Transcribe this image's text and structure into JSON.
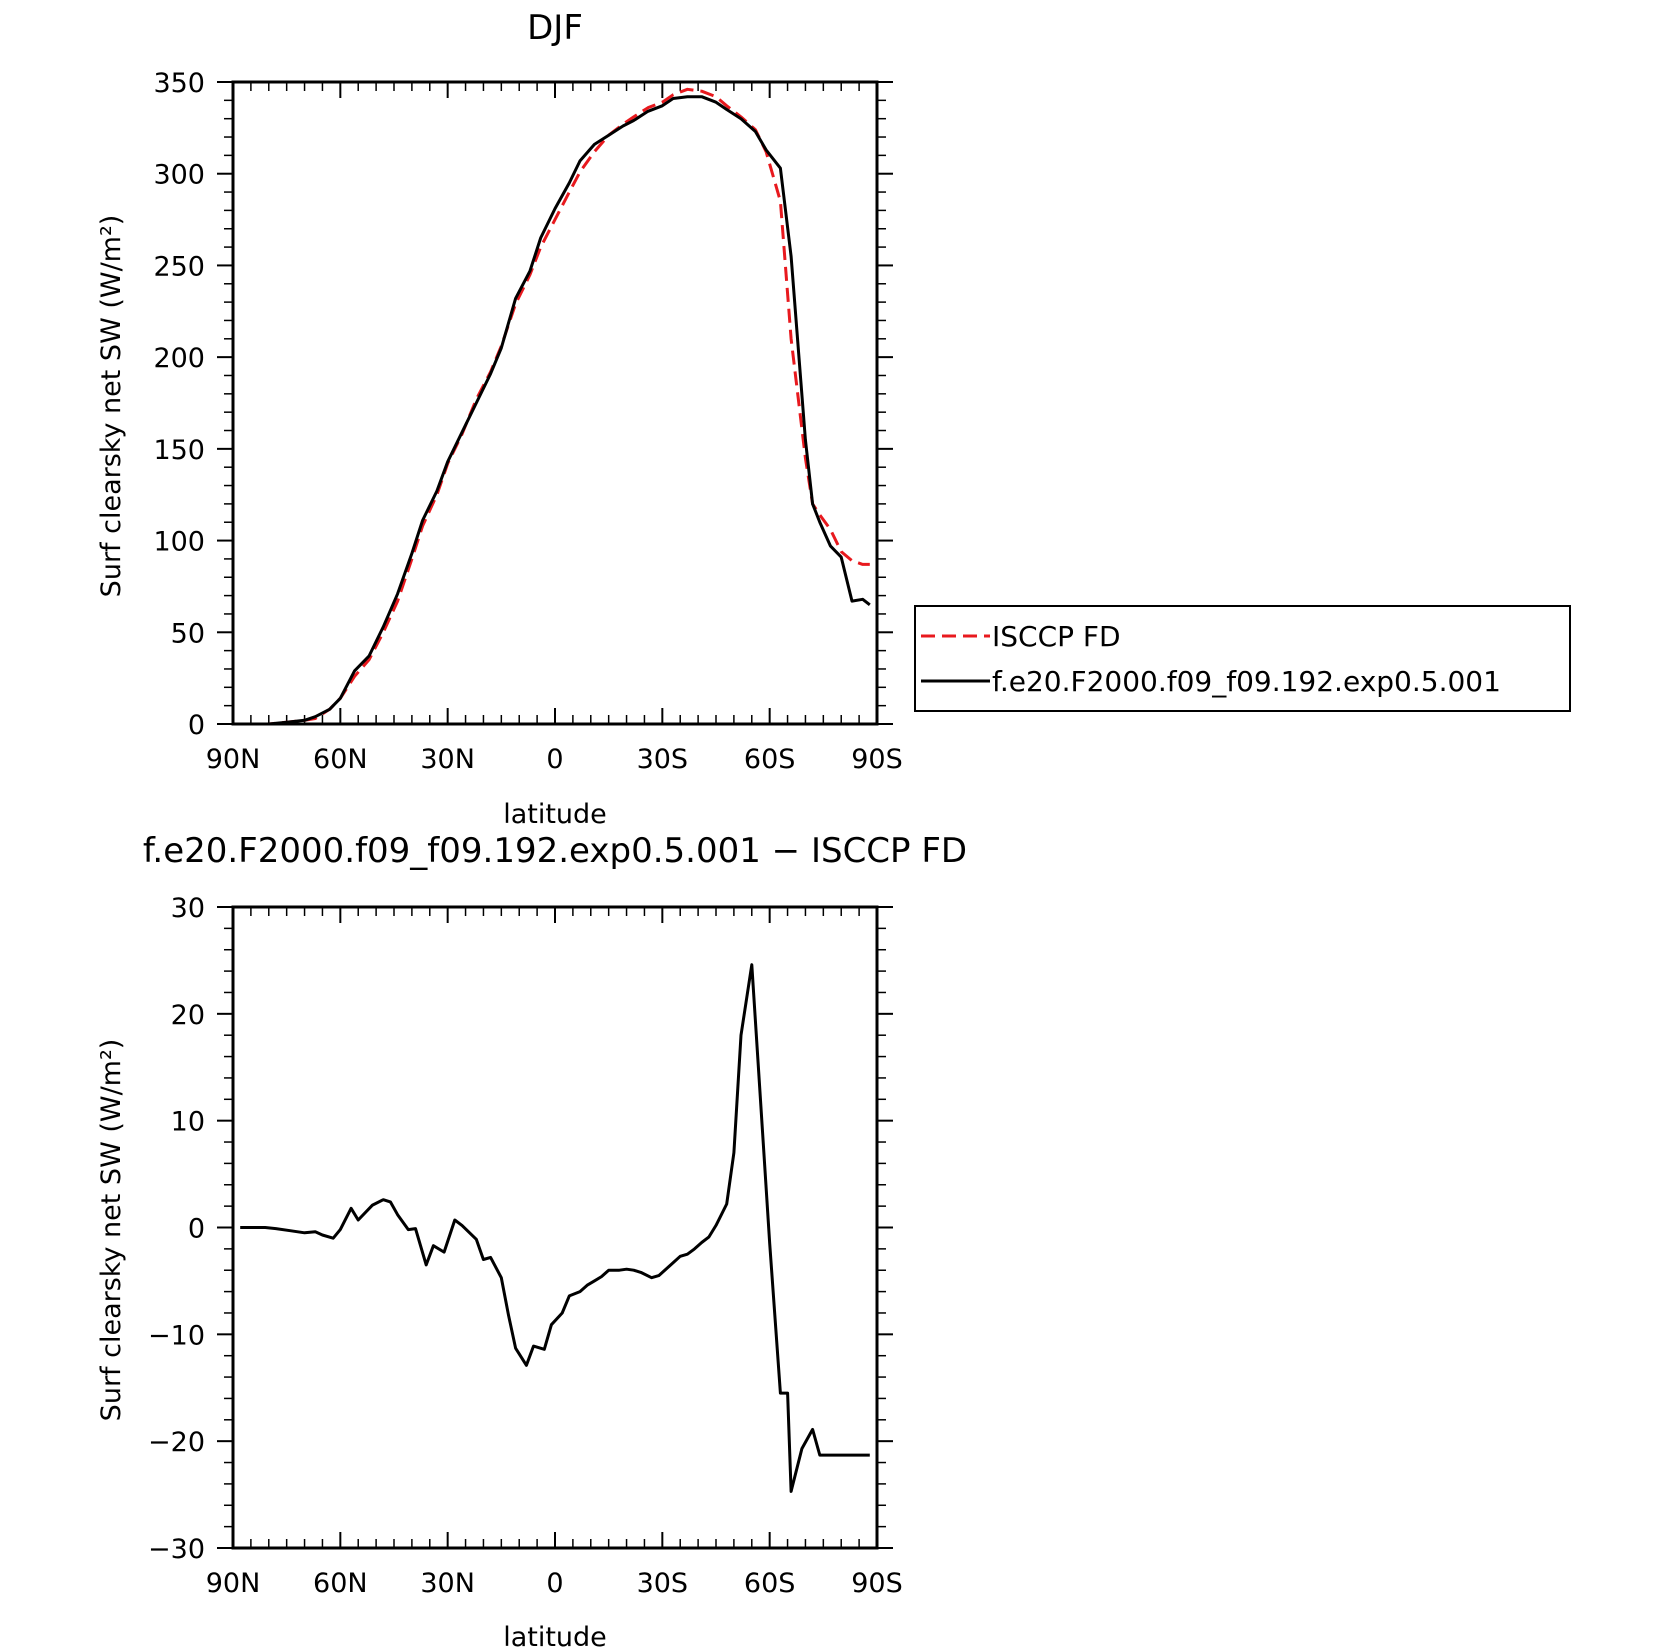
{
  "chart_data": [
    {
      "type": "line",
      "title": "DJF",
      "xlabel": "latitude",
      "ylabel": "Surf clearsky net SW (W/m²)",
      "xlim": [
        90,
        -90
      ],
      "ylim": [
        0,
        350
      ],
      "xticks": [
        {
          "value": 90,
          "label": "90N"
        },
        {
          "value": 60,
          "label": "60N"
        },
        {
          "value": 30,
          "label": "30N"
        },
        {
          "value": 0,
          "label": "0"
        },
        {
          "value": -30,
          "label": "30S"
        },
        {
          "value": -60,
          "label": "60S"
        },
        {
          "value": -90,
          "label": "90S"
        }
      ],
      "yticks": [
        {
          "value": 0,
          "label": "0"
        },
        {
          "value": 50,
          "label": "50"
        },
        {
          "value": 100,
          "label": "100"
        },
        {
          "value": 150,
          "label": "150"
        },
        {
          "value": 200,
          "label": "200"
        },
        {
          "value": 250,
          "label": "250"
        },
        {
          "value": 300,
          "label": "300"
        },
        {
          "value": 350,
          "label": "350"
        }
      ],
      "legend": "right",
      "series": [
        {
          "name": "ISCCP FD",
          "color": "#e8191e",
          "dash": "dashed",
          "x": [
            88,
            85,
            80,
            75,
            70,
            67,
            63,
            60,
            56,
            52,
            48,
            44,
            40,
            37,
            33,
            30,
            26,
            22,
            18,
            15,
            11,
            7,
            4,
            0,
            -4,
            -7,
            -11,
            -15,
            -19,
            -22,
            -26,
            -30,
            -33,
            -37,
            -41,
            -45,
            -48,
            -52,
            -56,
            -59,
            -63,
            -66,
            -70,
            -72,
            -74,
            -77,
            -80,
            -83,
            -86,
            -88
          ],
          "y": [
            0,
            0,
            0,
            1,
            2,
            3,
            8,
            14,
            26,
            35,
            50,
            67,
            90,
            108,
            125,
            142,
            158,
            177,
            192,
            206,
            229,
            245,
            260,
            275,
            290,
            301,
            312,
            321,
            327,
            331,
            336,
            339,
            343,
            346,
            345,
            342,
            337,
            331,
            324,
            312,
            285,
            210,
            145,
            120,
            114,
            106,
            94,
            89,
            87,
            87
          ]
        },
        {
          "name": "f.e20.F2000.f09_f09.192.exp0.5.001",
          "color": "#000000",
          "dash": "solid",
          "x": [
            88,
            85,
            80,
            75,
            70,
            67,
            63,
            60,
            56,
            52,
            48,
            44,
            40,
            37,
            33,
            30,
            26,
            22,
            18,
            15,
            11,
            7,
            4,
            0,
            -4,
            -7,
            -11,
            -15,
            -19,
            -22,
            -26,
            -30,
            -33,
            -37,
            -41,
            -45,
            -48,
            -52,
            -56,
            -59,
            -63,
            -66,
            -70,
            -72,
            -74,
            -77,
            -80,
            -83,
            -86,
            -88
          ],
          "y": [
            0,
            0,
            0,
            1,
            2,
            4,
            8,
            14,
            29,
            37,
            53,
            71,
            93,
            111,
            127,
            143,
            159,
            175,
            191,
            205,
            232,
            247,
            265,
            281,
            295,
            307,
            316,
            321,
            326,
            329,
            334,
            337,
            341,
            342,
            342,
            339,
            335,
            330,
            323,
            313,
            303,
            255,
            155,
            120,
            110,
            97,
            91,
            67,
            68,
            65
          ]
        }
      ]
    },
    {
      "type": "line",
      "title": "f.e20.F2000.f09_f09.192.exp0.5.001 − ISCCP FD",
      "xlabel": "latitude",
      "ylabel": "Surf clearsky net SW (W/m²)",
      "xlim": [
        90,
        -90
      ],
      "ylim": [
        -30,
        30
      ],
      "xticks": [
        {
          "value": 90,
          "label": "90N"
        },
        {
          "value": 60,
          "label": "60N"
        },
        {
          "value": 30,
          "label": "30N"
        },
        {
          "value": 0,
          "label": "0"
        },
        {
          "value": -30,
          "label": "30S"
        },
        {
          "value": -60,
          "label": "60S"
        },
        {
          "value": -90,
          "label": "90S"
        }
      ],
      "yticks": [
        {
          "value": -30,
          "label": "−30"
        },
        {
          "value": -20,
          "label": "−20"
        },
        {
          "value": -10,
          "label": "−10"
        },
        {
          "value": 0,
          "label": "0"
        },
        {
          "value": 10,
          "label": "10"
        },
        {
          "value": 20,
          "label": "20"
        },
        {
          "value": 30,
          "label": "30"
        }
      ],
      "series": [
        {
          "color": "#000000",
          "dash": "solid",
          "x": [
            88,
            85,
            81,
            78,
            74,
            70,
            67,
            65,
            62,
            60,
            57,
            55,
            51,
            48,
            46,
            44,
            41,
            39,
            36,
            34,
            31,
            28,
            26,
            22,
            20,
            18,
            15,
            13,
            11,
            8,
            6,
            3,
            1,
            -2,
            -4,
            -7,
            -9,
            -11,
            -13,
            -15,
            -18,
            -20,
            -22,
            -24,
            -27,
            -29,
            -33,
            -35,
            -37,
            -39,
            -41,
            -43,
            -45,
            -48,
            -50,
            -52,
            -55,
            -58,
            -60,
            -63,
            -65,
            -66,
            -69,
            -72,
            -74,
            -77,
            -80,
            -82,
            -85,
            -88
          ],
          "y": [
            0,
            0,
            0,
            -0.1,
            -0.3,
            -0.5,
            -0.4,
            -0.7,
            -1.0,
            -0.2,
            1.8,
            0.7,
            2.1,
            2.6,
            2.4,
            1.2,
            -0.2,
            -0.1,
            -3.5,
            -1.7,
            -2.3,
            0.7,
            0.2,
            -1.1,
            -3.0,
            -2.8,
            -4.7,
            -8.2,
            -11.3,
            -12.9,
            -11.1,
            -11.4,
            -9.1,
            -8.0,
            -6.4,
            -6.0,
            -5.4,
            -5.0,
            -4.6,
            -4.0,
            -4.0,
            -3.9,
            -4.0,
            -4.2,
            -4.7,
            -4.5,
            -3.3,
            -2.7,
            -2.5,
            -2.0,
            -1.4,
            -0.9,
            0.2,
            2.2,
            7.0,
            18.0,
            24.6,
            9.0,
            -1.5,
            -15.5,
            -15.5,
            -24.7,
            -20.7,
            -18.9,
            -21.3,
            -21.3,
            -21.3,
            -21.3,
            -21.3,
            -21.3
          ]
        }
      ]
    }
  ]
}
